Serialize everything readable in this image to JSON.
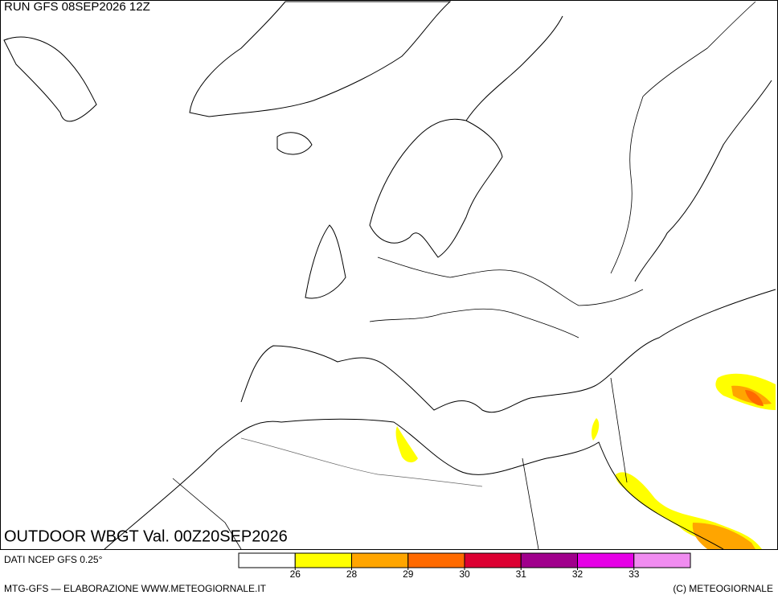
{
  "header": {
    "run": "RUN GFS 08SEP2026 12Z"
  },
  "map": {
    "title": "OUTDOOR WBGT Val. 00Z20SEP2026"
  },
  "footer": {
    "source": "DATI NCEP GFS 0.25°",
    "credit": "MTG-GFS — ELABORAZIONE WWW.METEOGIORNALE.IT",
    "copyright": "(C) METEOGIORNALE"
  },
  "legend": {
    "colors": [
      "#ffffff",
      "#ffff00",
      "#ffa500",
      "#ff6a00",
      "#dc0032",
      "#a0008c",
      "#e600e6",
      "#f08cf0"
    ],
    "ticks": [
      26,
      28,
      29,
      30,
      31,
      32,
      33
    ]
  }
}
